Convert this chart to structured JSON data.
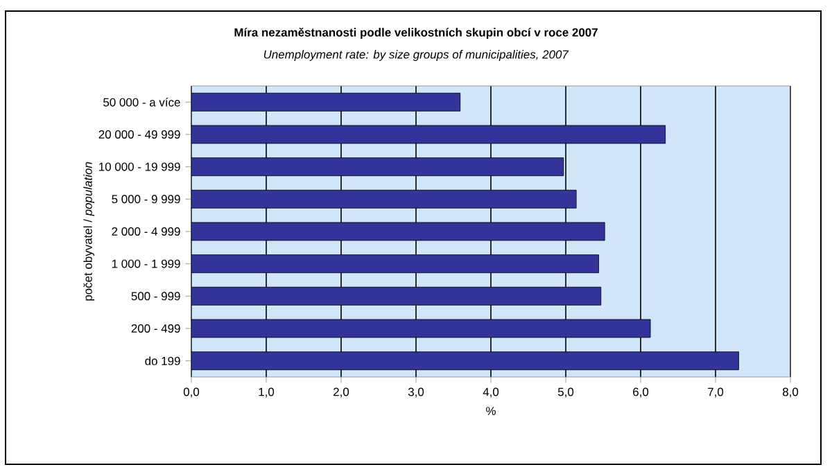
{
  "chart_data": {
    "type": "bar",
    "orientation": "horizontal",
    "title": "Míra nezaměstnanosti podle velikostních skupin obcí v roce 2007",
    "subtitle": "*Unemployment rate: by size groups of municipalities, 2007*",
    "xlabel": "%",
    "ylabel": "počet obyvatel / *population*",
    "categories": [
      "50 000 - a více",
      "20 000 - 49 999",
      "10 000 - 19 999",
      "5 000 - 9 999",
      "2 000 - 4 999",
      "1 000 - 1 999",
      "500 - 999",
      "200 - 499",
      "do 199"
    ],
    "values": [
      3.59,
      6.33,
      4.97,
      5.14,
      5.52,
      5.44,
      5.47,
      6.13,
      7.31
    ],
    "color": "#333399",
    "xlim": [
      0,
      8
    ],
    "xticks": [
      {
        "value": 0,
        "label": "0,0"
      },
      {
        "value": 1,
        "label": "1,0"
      },
      {
        "value": 2,
        "label": "2,0"
      },
      {
        "value": 3,
        "label": "3,0"
      },
      {
        "value": 4,
        "label": "4,0"
      },
      {
        "value": 5,
        "label": "5,0"
      },
      {
        "value": 6,
        "label": "6,0"
      },
      {
        "value": 7,
        "label": "7,0"
      },
      {
        "value": 8,
        "label": "8,0"
      }
    ],
    "grid": "x"
  }
}
